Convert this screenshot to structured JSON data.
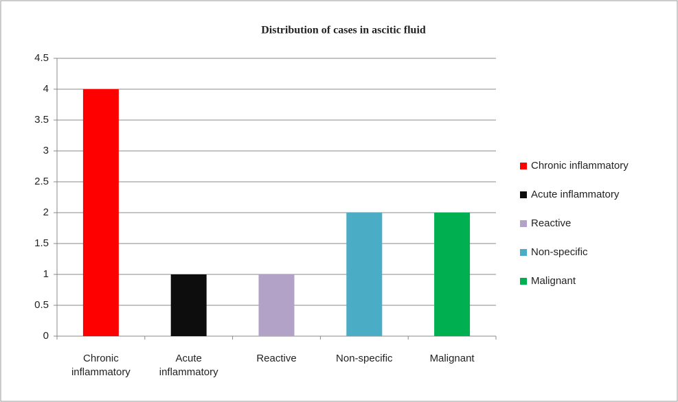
{
  "chart_data": {
    "type": "bar",
    "title": "Distribution of cases in ascitic fluid",
    "categories": [
      "Chronic inflammatory",
      "Acute inflammatory",
      "Reactive",
      "Non-specific",
      "Malignant"
    ],
    "values": [
      4,
      1,
      1,
      2,
      2
    ],
    "colors": [
      "#ff0000",
      "#0d0d0d",
      "#b3a2c7",
      "#4bacc6",
      "#00b050"
    ],
    "ylim": [
      0,
      4.5
    ],
    "yticks": [
      0,
      0.5,
      1,
      1.5,
      2,
      2.5,
      3,
      3.5,
      4,
      4.5
    ],
    "grid": true,
    "legend": "right"
  }
}
